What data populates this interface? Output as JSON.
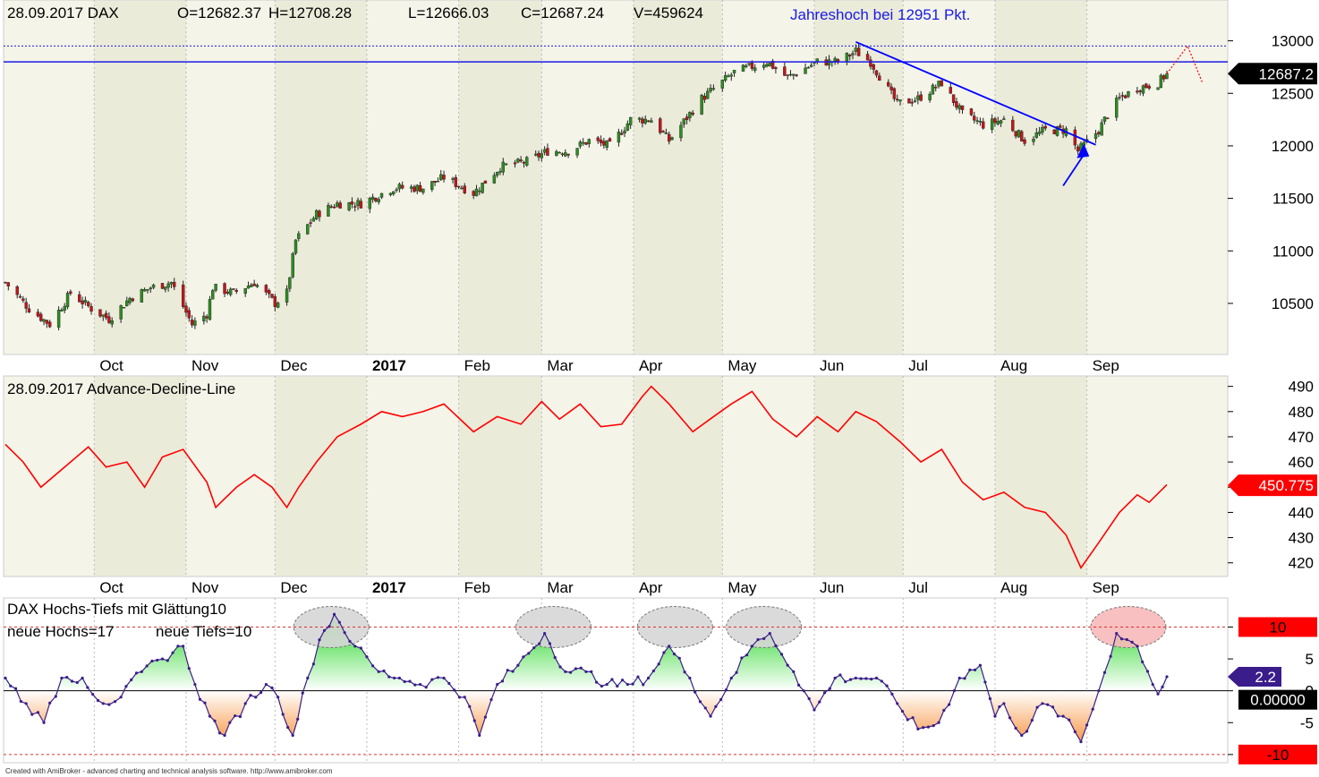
{
  "chart_data": [
    {
      "type": "candlestick",
      "title": "28.09.2017 DAX",
      "ohlc_label": {
        "open": "O=12682.37",
        "high": "H=12708.28",
        "low": "L=12666.03",
        "close": "C=12687.24",
        "volume": "V=459624"
      },
      "annotation": "Jahreshoch bei 12951 Pkt.",
      "ylim": [
        10150,
        13150
      ],
      "yticks": [
        10500,
        11000,
        11500,
        12000,
        12500,
        13000
      ],
      "last_value_label": "12687.2",
      "last_value": 12687.2,
      "resistance_levels": [
        12800,
        12951
      ],
      "trendline": {
        "from": [
          "2017-06-15",
          12990
        ],
        "to": [
          "2017-09-04",
          12010
        ]
      },
      "price_path": [
        [
          "2016-09-01",
          10700
        ],
        [
          "2016-09-09",
          10450
        ],
        [
          "2016-09-16",
          10300
        ],
        [
          "2016-09-23",
          10600
        ],
        [
          "2016-09-30",
          10450
        ],
        [
          "2016-10-06",
          10350
        ],
        [
          "2016-10-13",
          10550
        ],
        [
          "2016-10-20",
          10650
        ],
        [
          "2016-10-27",
          10700
        ],
        [
          "2016-11-03",
          10300
        ],
        [
          "2016-11-08",
          10400
        ],
        [
          "2016-11-10",
          10650
        ],
        [
          "2016-11-17",
          10600
        ],
        [
          "2016-11-24",
          10700
        ],
        [
          "2016-12-01",
          10500
        ],
        [
          "2016-12-05",
          10600
        ],
        [
          "2016-12-08",
          11100
        ],
        [
          "2016-12-15",
          11350
        ],
        [
          "2016-12-22",
          11450
        ],
        [
          "2016-12-30",
          11450
        ],
        [
          "2017-01-10",
          11600
        ],
        [
          "2017-01-20",
          11600
        ],
        [
          "2017-01-27",
          11700
        ],
        [
          "2017-02-06",
          11550
        ],
        [
          "2017-02-15",
          11800
        ],
        [
          "2017-02-24",
          11850
        ],
        [
          "2017-03-03",
          11950
        ],
        [
          "2017-03-10",
          11950
        ],
        [
          "2017-03-17",
          12050
        ],
        [
          "2017-03-24",
          12000
        ],
        [
          "2017-03-31",
          12250
        ],
        [
          "2017-04-07",
          12250
        ],
        [
          "2017-04-13",
          12050
        ],
        [
          "2017-04-24",
          12450
        ],
        [
          "2017-05-05",
          12700
        ],
        [
          "2017-05-16",
          12800
        ],
        [
          "2017-05-23",
          12650
        ],
        [
          "2017-06-02",
          12800
        ],
        [
          "2017-06-09",
          12800
        ],
        [
          "2017-06-15",
          12900
        ],
        [
          "2017-06-20",
          12800
        ],
        [
          "2017-06-29",
          12400
        ],
        [
          "2017-07-06",
          12450
        ],
        [
          "2017-07-14",
          12600
        ],
        [
          "2017-07-21",
          12300
        ],
        [
          "2017-07-28",
          12200
        ],
        [
          "2017-08-04",
          12250
        ],
        [
          "2017-08-11",
          12050
        ],
        [
          "2017-08-18",
          12150
        ],
        [
          "2017-08-25",
          12150
        ],
        [
          "2017-08-29",
          11950
        ],
        [
          "2017-09-05",
          12150
        ],
        [
          "2017-09-08",
          12300
        ],
        [
          "2017-09-12",
          12450
        ],
        [
          "2017-09-18",
          12550
        ],
        [
          "2017-09-25",
          12600
        ],
        [
          "2017-09-28",
          12687
        ]
      ],
      "year_high_marker": [
        "2017-10-05",
        12951
      ]
    },
    {
      "type": "line",
      "title": "28.09.2017 Advance-Decline-Line",
      "ylim": [
        416,
        492
      ],
      "yticks": [
        420,
        430,
        440,
        450,
        460,
        470,
        480,
        490
      ],
      "last_value_label": "450.775",
      "last_value": 450.775,
      "series": [
        {
          "points": [
            [
              "2016-09-01",
              467
            ],
            [
              "2016-09-07",
              460
            ],
            [
              "2016-09-13",
              450
            ],
            [
              "2016-09-21",
              458
            ],
            [
              "2016-09-29",
              466
            ],
            [
              "2016-10-05",
              458
            ],
            [
              "2016-10-12",
              460
            ],
            [
              "2016-10-18",
              450
            ],
            [
              "2016-10-24",
              462
            ],
            [
              "2016-10-31",
              465
            ],
            [
              "2016-11-08",
              452
            ],
            [
              "2016-11-11",
              442
            ],
            [
              "2016-11-18",
              450
            ],
            [
              "2016-11-24",
              455
            ],
            [
              "2016-11-30",
              450
            ],
            [
              "2016-12-05",
              442
            ],
            [
              "2016-12-09",
              450
            ],
            [
              "2016-12-15",
              460
            ],
            [
              "2016-12-22",
              470
            ],
            [
              "2016-12-30",
              475
            ],
            [
              "2017-01-06",
              480
            ],
            [
              "2017-01-13",
              478
            ],
            [
              "2017-01-20",
              480
            ],
            [
              "2017-01-27",
              483
            ],
            [
              "2017-02-06",
              472
            ],
            [
              "2017-02-14",
              478
            ],
            [
              "2017-02-22",
              475
            ],
            [
              "2017-03-01",
              484
            ],
            [
              "2017-03-07",
              477
            ],
            [
              "2017-03-14",
              483
            ],
            [
              "2017-03-21",
              474
            ],
            [
              "2017-03-28",
              475
            ],
            [
              "2017-04-04",
              486
            ],
            [
              "2017-04-07",
              490
            ],
            [
              "2017-04-13",
              483
            ],
            [
              "2017-04-21",
              472
            ],
            [
              "2017-04-28",
              478
            ],
            [
              "2017-05-04",
              483
            ],
            [
              "2017-05-11",
              488
            ],
            [
              "2017-05-18",
              477
            ],
            [
              "2017-05-26",
              470
            ],
            [
              "2017-06-02",
              478
            ],
            [
              "2017-06-09",
              472
            ],
            [
              "2017-06-15",
              480
            ],
            [
              "2017-06-22",
              476
            ],
            [
              "2017-06-30",
              468
            ],
            [
              "2017-07-07",
              460
            ],
            [
              "2017-07-14",
              465
            ],
            [
              "2017-07-21",
              452
            ],
            [
              "2017-07-28",
              445
            ],
            [
              "2017-08-04",
              448
            ],
            [
              "2017-08-11",
              442
            ],
            [
              "2017-08-18",
              440
            ],
            [
              "2017-08-25",
              431
            ],
            [
              "2017-08-30",
              418
            ],
            [
              "2017-09-05",
              428
            ],
            [
              "2017-09-12",
              440
            ],
            [
              "2017-09-18",
              447
            ],
            [
              "2017-09-22",
              444
            ],
            [
              "2017-09-28",
              451
            ]
          ]
        }
      ]
    },
    {
      "type": "area",
      "title": "DAX Hochs-Tiefs mit Glättung10",
      "new_highs_label": "neue Hochs=17",
      "new_lows_label": "neue Tiefs=10",
      "ylim": [
        -11,
        14
      ],
      "yticks": [
        -10,
        -5,
        0,
        5,
        10
      ],
      "threshold_labels": [
        "10",
        "-10"
      ],
      "zero_label": "0.00000",
      "last_value_label": "2.2",
      "last_value": 2.2,
      "highlighted_peaks": [
        "2016-12-20",
        "2017-03-05",
        "2017-04-15",
        "2017-05-15",
        "2017-09-15"
      ],
      "series": [
        {
          "points": [
            [
              "2016-09-01",
              2
            ],
            [
              "2016-09-08",
              -2
            ],
            [
              "2016-09-14",
              -5
            ],
            [
              "2016-09-20",
              2
            ],
            [
              "2016-09-27",
              2
            ],
            [
              "2016-10-04",
              -2
            ],
            [
              "2016-10-10",
              -1
            ],
            [
              "2016-10-17",
              3
            ],
            [
              "2016-10-24",
              5
            ],
            [
              "2016-10-31",
              7
            ],
            [
              "2016-11-04",
              1
            ],
            [
              "2016-11-09",
              -4
            ],
            [
              "2016-11-14",
              -7
            ],
            [
              "2016-11-21",
              -2
            ],
            [
              "2016-11-28",
              1
            ],
            [
              "2016-12-02",
              -1
            ],
            [
              "2016-12-07",
              -7
            ],
            [
              "2016-12-12",
              2
            ],
            [
              "2016-12-16",
              8
            ],
            [
              "2016-12-21",
              12
            ],
            [
              "2016-12-28",
              7
            ],
            [
              "2017-01-05",
              3
            ],
            [
              "2017-01-12",
              2
            ],
            [
              "2017-01-19",
              1
            ],
            [
              "2017-01-27",
              2
            ],
            [
              "2017-02-03",
              -1
            ],
            [
              "2017-02-08",
              -7
            ],
            [
              "2017-02-14",
              1
            ],
            [
              "2017-02-21",
              4
            ],
            [
              "2017-03-02",
              9
            ],
            [
              "2017-03-09",
              3
            ],
            [
              "2017-03-16",
              3
            ],
            [
              "2017-03-23",
              1
            ],
            [
              "2017-03-30",
              1
            ],
            [
              "2017-04-06",
              2
            ],
            [
              "2017-04-13",
              7
            ],
            [
              "2017-04-20",
              2
            ],
            [
              "2017-04-27",
              -4
            ],
            [
              "2017-05-04",
              2
            ],
            [
              "2017-05-11",
              7
            ],
            [
              "2017-05-17",
              9
            ],
            [
              "2017-05-25",
              3
            ],
            [
              "2017-06-01",
              -3
            ],
            [
              "2017-06-08",
              2
            ],
            [
              "2017-06-15",
              2
            ],
            [
              "2017-06-22",
              2
            ],
            [
              "2017-06-29",
              -2
            ],
            [
              "2017-07-06",
              -6
            ],
            [
              "2017-07-13",
              -5
            ],
            [
              "2017-07-20",
              2
            ],
            [
              "2017-07-27",
              4
            ],
            [
              "2017-08-01",
              -4
            ],
            [
              "2017-08-04",
              -2
            ],
            [
              "2017-08-10",
              -7
            ],
            [
              "2017-08-17",
              -2
            ],
            [
              "2017-08-24",
              -4
            ],
            [
              "2017-08-30",
              -8
            ],
            [
              "2017-09-05",
              0
            ],
            [
              "2017-09-11",
              9
            ],
            [
              "2017-09-18",
              7
            ],
            [
              "2017-09-25",
              -0.5
            ],
            [
              "2017-09-28",
              2.2
            ]
          ]
        }
      ]
    }
  ],
  "x_axis": {
    "labels": [
      {
        "text": "Oct",
        "date": "2016-10-01"
      },
      {
        "text": "Nov",
        "date": "2016-11-01"
      },
      {
        "text": "Dec",
        "date": "2016-12-01"
      },
      {
        "text": "2017",
        "date": "2017-01-01",
        "bold": true
      },
      {
        "text": "Feb",
        "date": "2017-02-01"
      },
      {
        "text": "Mar",
        "date": "2017-03-01"
      },
      {
        "text": "Apr",
        "date": "2017-04-01"
      },
      {
        "text": "May",
        "date": "2017-05-01"
      },
      {
        "text": "Jun",
        "date": "2017-06-01"
      },
      {
        "text": "Jul",
        "date": "2017-07-01"
      },
      {
        "text": "Aug",
        "date": "2017-08-01"
      },
      {
        "text": "Sep",
        "date": "2017-09-01"
      }
    ]
  },
  "footer_text": "Created with AmiBroker - advanced charting and technical analysis software. http://www.amibroker.com",
  "colors": {
    "price_up": "#2e8b22",
    "price_down": "#c0161a",
    "adl_line": "#ff0000",
    "hl_line": "#3a1d8a",
    "hl_fill_pos": "#19d419",
    "hl_fill_neg": "#f79a4a",
    "trendline": "#0000ff",
    "label_red": "#ff0000",
    "label_black": "#000000",
    "label_purple": "#3a1d8a"
  }
}
